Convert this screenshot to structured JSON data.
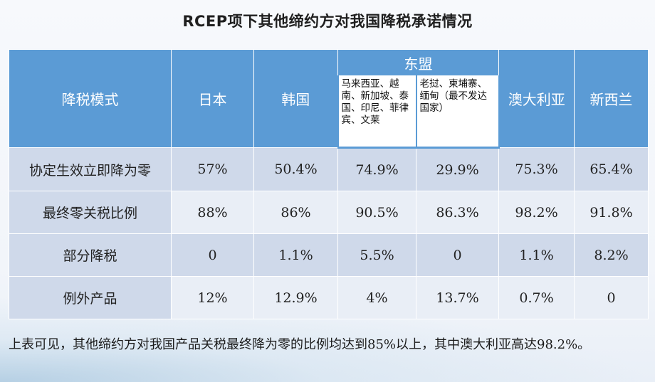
{
  "title": "RCEP项下其他缔约方对我国降税承诺情况",
  "table": {
    "col0_header": "降税模式",
    "japan": "日本",
    "korea": "韩国",
    "asean": "东盟",
    "asean_sub1": "马来西亚、越南、新加坡、泰国、印尼、菲律宾、文莱",
    "asean_sub2": "老挝、柬埔寨、缅甸（最不发达国家）",
    "australia": "澳大利亚",
    "newzealand": "新西兰",
    "rows": [
      {
        "label": "协定生效立即降为零",
        "values": [
          "57%",
          "50.4%",
          "74.9%",
          "29.9%",
          "75.3%",
          "65.4%"
        ]
      },
      {
        "label": "最终零关税比例",
        "values": [
          "88%",
          "86%",
          "90.5%",
          "86.3%",
          "98.2%",
          "91.8%"
        ]
      },
      {
        "label": "部分降税",
        "values": [
          "0",
          "1.1%",
          "5.5%",
          "0",
          "1.1%",
          "8.2%"
        ]
      },
      {
        "label": "例外产品",
        "values": [
          "12%",
          "12.9%",
          "4%",
          "13.7%",
          "0.7%",
          "0"
        ]
      }
    ]
  },
  "note": "上表可见，其他缔约方对我国产品关税最终降为零的比例均达到85%以上，其中澳大利亚高达98.2%。"
}
